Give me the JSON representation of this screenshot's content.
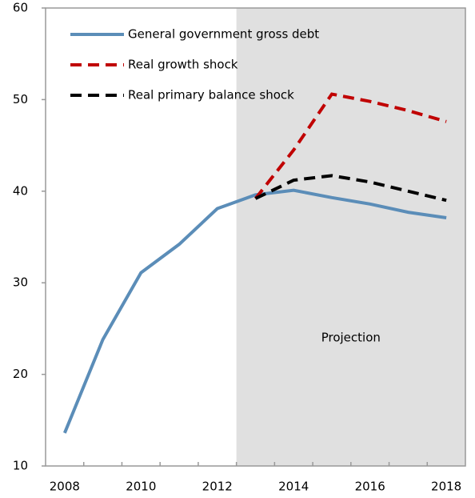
{
  "chart_data": {
    "type": "line",
    "x": [
      2008,
      2009,
      2010,
      2011,
      2012,
      2013,
      2014,
      2015,
      2016,
      2017,
      2018
    ],
    "xlim": [
      2007.5,
      2018.5
    ],
    "xticks": [
      2008,
      2010,
      2012,
      2014,
      2016,
      2018
    ],
    "ylim": [
      10,
      60
    ],
    "yticks": [
      10,
      20,
      30,
      40,
      50,
      60
    ],
    "series": [
      {
        "name": "General government gross debt",
        "color": "#5b8db8",
        "dash": "solid",
        "values": [
          13.6,
          23.8,
          31.1,
          34.2,
          38.1,
          39.6,
          40.1,
          39.3,
          38.6,
          37.7,
          37.1
        ]
      },
      {
        "name": "Real growth shock",
        "color": "#c00000",
        "dash": "dashed",
        "values": [
          null,
          null,
          null,
          null,
          null,
          39.2,
          44.5,
          50.6,
          49.8,
          48.8,
          47.6
        ]
      },
      {
        "name": "Real primary balance shock",
        "color": "#000000",
        "dash": "dashed",
        "values": [
          null,
          null,
          null,
          null,
          null,
          39.2,
          41.2,
          41.7,
          41.0,
          40.0,
          39.0
        ]
      }
    ],
    "shaded_region": {
      "label": "Projection",
      "from": 2012.5,
      "to": 2018.5,
      "color": "#e0e0e0"
    },
    "legend": "upper left"
  }
}
